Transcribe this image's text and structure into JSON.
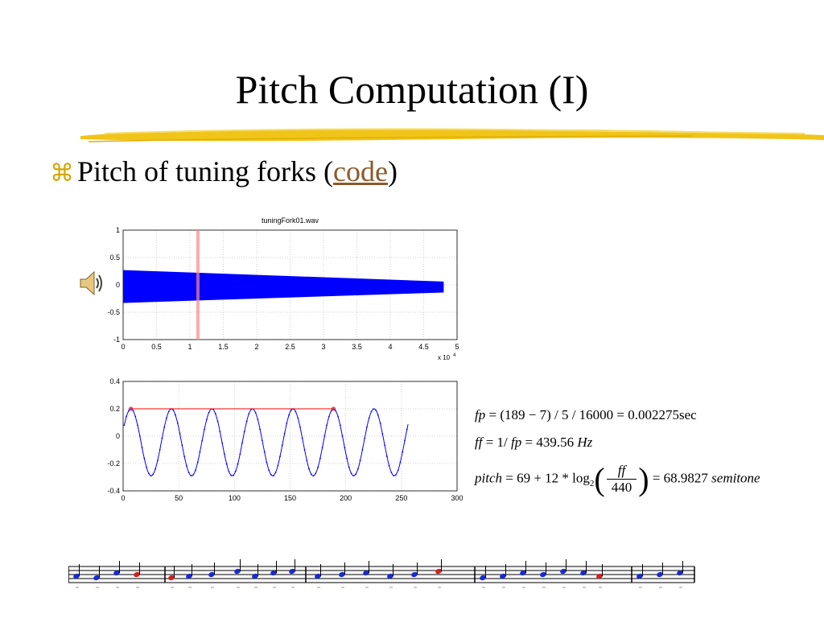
{
  "slide": {
    "title": "Pitch Computation (I)",
    "bullet": {
      "text": "Pitch of tuning forks (",
      "link": "code",
      "close": ")"
    }
  },
  "colors": {
    "bullet_mark": "#d4a600",
    "link": "#8a5a2b",
    "brush": "#f0c419",
    "waveform": "#0000ff",
    "frame_marker": "#ff8888",
    "period_marker": "#ff0000"
  },
  "icons": [
    "command-icon",
    "speaker-icon",
    "music-staff-icon"
  ],
  "chart_data": [
    {
      "type": "area",
      "title": "tuningFork01.wav",
      "x_exponent_label": "x 10",
      "x_exponent_sup": "4",
      "xlim": [
        0,
        5
      ],
      "ylim": [
        -1,
        1
      ],
      "xticks": [
        "0",
        "0.5",
        "1",
        "1.5",
        "2",
        "2.5",
        "3",
        "3.5",
        "4",
        "4.5",
        "5"
      ],
      "yticks": [
        "1",
        "0.5",
        "0",
        "-0.5",
        "-1"
      ],
      "envelope": {
        "x": [
          0,
          4.8
        ],
        "upper": [
          0.27,
          0.06
        ],
        "lower": [
          -0.33,
          -0.14
        ]
      },
      "frame_marker_x": 1.12,
      "grid": true
    },
    {
      "type": "line",
      "xlim": [
        0,
        300
      ],
      "ylim": [
        -0.4,
        0.4
      ],
      "xticks": [
        "0",
        "50",
        "100",
        "150",
        "200",
        "250",
        "300"
      ],
      "yticks": [
        "0.4",
        "0.2",
        "0",
        "-0.2",
        "-0.4"
      ],
      "signal": {
        "x_start": 1,
        "x_end": 256,
        "period": 36.4,
        "peak_x": 7,
        "max": 0.2,
        "min": -0.29
      },
      "period_line": {
        "x": [
          7,
          189
        ],
        "y": 0.2
      },
      "grid": true
    }
  ],
  "formulas": {
    "fp": {
      "lhs": "fp",
      "rhs": "= (189 − 7) / 5 / 16000 = 0.002275sec"
    },
    "ff": {
      "lhs": "ff",
      "mid": " = 1/ ",
      "var": "fp",
      "rhs": " = 439.56 ",
      "unit": "Hz"
    },
    "pitch": {
      "lhs": "pitch",
      "rhs": " = 69 + 12 * log",
      "sub": "2",
      "num": "ff",
      "den": "440",
      "result": " = 68.9827 ",
      "unit": "semitone"
    }
  }
}
